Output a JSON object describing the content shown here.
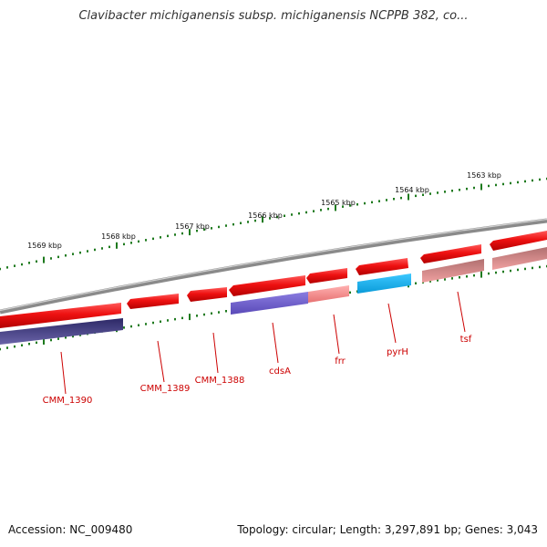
{
  "title": "Clavibacter michiganensis subsp. michiganensis NCPPB 382, co...",
  "footer": {
    "accession": "Accession: NC_009480",
    "summary": "Topology: circular; Length: 3,297,891 bp; Genes: 3,043"
  },
  "colors": {
    "backbone": "#8a8a8a",
    "tick": "#1e7a1e",
    "tick_label": "#111111",
    "gene_label": "#cc0000",
    "forward_gene": "#ee1111",
    "reverse_gene_light": "#ee8080",
    "reverse_gene_dark": "#a06060",
    "cdsA_fill": "#6a5acd",
    "pyrH_fill": "#19b4ee",
    "CMM_1390_fill": "#3a3278"
  },
  "ruler": {
    "labels": [
      "1569 kbp",
      "1568 kbp",
      "1567 kbp",
      "1566 kbp",
      "1565 kbp",
      "1564 kbp",
      "1563 kbp"
    ]
  },
  "genes": [
    {
      "name": "CMM_1390",
      "color": "CMM_1390_fill"
    },
    {
      "name": "CMM_1389",
      "color": "forward_gene"
    },
    {
      "name": "CMM_1388",
      "color": "forward_gene"
    },
    {
      "name": "cdsA",
      "color": "cdsA_fill"
    },
    {
      "name": "frr",
      "color": "reverse_gene_light"
    },
    {
      "name": "pyrH",
      "color": "pyrH_fill"
    },
    {
      "name": "tsf",
      "color": "reverse_gene_light"
    }
  ]
}
